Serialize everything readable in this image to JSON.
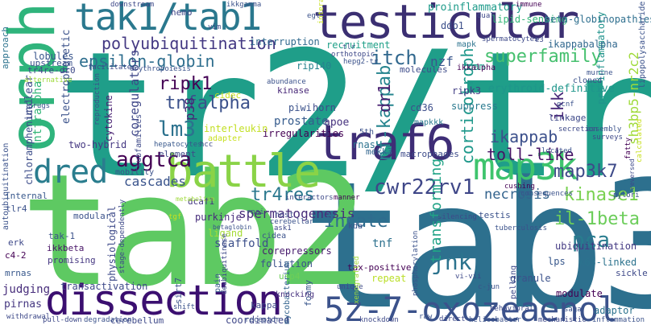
{
  "words": [
    {
      "t": "tr2/tr4",
      "c": "#1f9e89"
    },
    {
      "t": "tab3",
      "c": "#2d708e"
    },
    {
      "t": "tab2",
      "c": "#5ec962"
    },
    {
      "t": "testicular",
      "c": "#3b2f72"
    },
    {
      "t": "tak1/tab1",
      "c": "#2a788e"
    },
    {
      "t": "orphan",
      "c": "#2fb47c"
    },
    {
      "t": "battle",
      "c": "#8ad347"
    },
    {
      "t": "dissection",
      "c": "#3b0f70"
    },
    {
      "t": "traf6",
      "c": "#3e2d76"
    },
    {
      "t": "5z-7-oxozeaenol",
      "c": "#3b528b"
    },
    {
      "t": "map3k",
      "c": "#3ec46d"
    },
    {
      "t": "dred",
      "c": "#2a7d8e"
    },
    {
      "t": "polyubiquitination",
      "c": "#443983"
    },
    {
      "t": "epsilon-globin",
      "c": "#2e6e8e"
    },
    {
      "t": "itch",
      "c": "#31688e"
    },
    {
      "t": "superfamily",
      "c": "#46c06f"
    },
    {
      "t": "ripk1",
      "c": "#440154"
    },
    {
      "t": "tnfalpha",
      "c": "#3b518b"
    },
    {
      "t": "lm3",
      "c": "#2c728e"
    },
    {
      "t": "aggtca",
      "c": "#440154"
    },
    {
      "t": "cascades",
      "c": "#3a548c"
    },
    {
      "t": "tr4res",
      "c": "#2a788e"
    },
    {
      "t": "cwr22rv1",
      "c": "#3f4788"
    },
    {
      "t": "spermatogenesis",
      "c": "#472c7a"
    },
    {
      "t": "innate",
      "c": "#2f6c8e"
    },
    {
      "t": "jnk",
      "c": "#2c738e"
    },
    {
      "t": "map3k7",
      "c": "#3e4a89"
    },
    {
      "t": "kinase1",
      "c": "#7ad151"
    },
    {
      "t": "il-1beta",
      "c": "#6ccd5a"
    },
    {
      "t": "pca",
      "c": "#287c8e"
    },
    {
      "t": "toll-like",
      "c": "#471365"
    },
    {
      "t": "ikappab",
      "c": "#3c508b"
    },
    {
      "t": "necrosis",
      "c": "#33638d"
    },
    {
      "t": "sh3bp5-nr2c2",
      "c": "#9fda3a"
    },
    {
      "t": "nf-kappab",
      "c": "#25848e"
    },
    {
      "t": "corticotroph",
      "c": "#1f988b"
    },
    {
      "t": "transforming",
      "c": "#20a386"
    },
    {
      "t": "dr1",
      "c": "#481f70"
    },
    {
      "t": "p38",
      "c": "#482475"
    },
    {
      "t": "cntfralpha",
      "c": "#34b679"
    },
    {
      "t": "erythroid-definitive",
      "c": "#1f968b"
    },
    {
      "t": "proinflammatory",
      "c": "#1e9b8a"
    },
    {
      "t": "lipid-sensing",
      "c": "#35b779"
    },
    {
      "t": "beta-globinopathies",
      "c": "#2e6f8e"
    },
    {
      "t": "nzf",
      "c": "#39568c"
    },
    {
      "t": "ikk",
      "c": "#482677"
    },
    {
      "t": "pro-inflammatory",
      "c": "#20938c"
    },
    {
      "t": "coregulators",
      "c": "#3f4788"
    },
    {
      "t": "dcaf1",
      "c": "#453882"
    },
    {
      "t": "tnf",
      "c": "#2d718e"
    },
    {
      "t": "ubiquitination",
      "c": "#443a83"
    },
    {
      "t": "k63-linked",
      "c": "#2c738e"
    },
    {
      "t": "ripk3",
      "c": "#433e85"
    },
    {
      "t": "cd36",
      "c": "#3d4e8a"
    },
    {
      "t": "macrophages",
      "c": "#3e4c8a"
    },
    {
      "t": "mekk3",
      "c": "#32658e"
    },
    {
      "t": "apoe",
      "c": "#46327e"
    },
    {
      "t": "rnas",
      "c": "#2c728e"
    },
    {
      "t": "interleukin",
      "c": "#c2df23"
    },
    {
      "t": "cidec",
      "c": "#c8e020"
    },
    {
      "t": "prostate",
      "c": "#365c8d"
    },
    {
      "t": "electrophoretic",
      "c": "#3b528b"
    },
    {
      "t": "autoubiquitination",
      "c": "#3b528b"
    },
    {
      "t": "chloramphenicol",
      "c": "#3d4d8a"
    },
    {
      "t": "physiological",
      "c": "#3e4a89"
    },
    {
      "t": "corepressors",
      "c": "#481c6e"
    },
    {
      "t": "scaffold",
      "c": "#3c4f8a"
    },
    {
      "t": "foliation",
      "c": "#3b528b"
    },
    {
      "t": "usp4",
      "c": "#6ece58"
    },
    {
      "t": "transactivation",
      "c": "#3e4989"
    },
    {
      "t": "judging",
      "c": "#472d7b"
    },
    {
      "t": "ikkbeta",
      "c": "#481467"
    },
    {
      "t": "pirnas",
      "c": "#453781"
    },
    {
      "t": "coordinated",
      "c": "#3f4788"
    },
    {
      "t": "mycobacterium",
      "c": "#32648e"
    },
    {
      "t": "foamy",
      "c": "#39568c"
    },
    {
      "t": "modulate",
      "c": "#440154"
    },
    {
      "t": "adaptor",
      "c": "#2c738e"
    },
    {
      "t": "granule",
      "c": "#3b528b"
    },
    {
      "t": "lps",
      "c": "#38588c"
    },
    {
      "t": "pelling",
      "c": "#3e4989"
    },
    {
      "t": "repeat",
      "c": "#bade28"
    },
    {
      "t": "tax-positive",
      "c": "#440154"
    },
    {
      "t": "knocking",
      "c": "#46307e"
    },
    {
      "t": "kappa",
      "c": "#3e4989"
    },
    {
      "t": "sirt7",
      "c": "#3b528b"
    },
    {
      "t": "pain",
      "c": "#38588c"
    },
    {
      "t": "purkinje",
      "c": "#472d7b"
    },
    {
      "t": "ligand",
      "c": "#a5db36"
    },
    {
      "t": "cytokine",
      "c": "#482173"
    },
    {
      "t": "recruitment",
      "c": "#1fa088"
    },
    {
      "t": "interruption",
      "c": "#30698e"
    },
    {
      "t": "rip140",
      "c": "#25838e"
    },
    {
      "t": "foam",
      "c": "#1e9c89"
    },
    {
      "t": "suppress",
      "c": "#29798e"
    },
    {
      "t": "nemo",
      "c": "#3f4788"
    },
    {
      "t": "ddb1",
      "c": "#3c4f8a"
    },
    {
      "t": "lobules",
      "c": "#39558c"
    },
    {
      "t": "upstream",
      "c": "#3b528b"
    },
    {
      "t": "tr4re-dr0",
      "c": "#3e4a89"
    },
    {
      "t": "unclear",
      "c": "#3e4c8a"
    },
    {
      "t": "two-hybrid",
      "c": "#453882"
    },
    {
      "t": "internal",
      "c": "#38588c"
    },
    {
      "t": "tlr4",
      "c": "#3b528b"
    },
    {
      "t": "erk",
      "c": "#3e4989"
    },
    {
      "t": "c4-2",
      "c": "#440154"
    },
    {
      "t": "tak-1",
      "c": "#3b528b"
    },
    {
      "t": "promising",
      "c": "#453781"
    },
    {
      "t": "mrnas",
      "c": "#38588c"
    },
    {
      "t": "approach",
      "c": "#2c738e"
    },
    {
      "t": "reproduction",
      "c": "#3b528b"
    },
    {
      "t": "subfamilies",
      "c": "#3e4a89"
    },
    {
      "t": "adapter",
      "c": "#c8e020"
    },
    {
      "t": "hepatocytes",
      "c": "#38588c"
    },
    {
      "t": "element",
      "c": "#3e4a89"
    },
    {
      "t": "mobility",
      "c": "#3b528b"
    },
    {
      "t": "piwi",
      "c": "#3b528b"
    },
    {
      "t": "horn",
      "c": "#3e4989"
    },
    {
      "t": "irregularities",
      "c": "#440154"
    },
    {
      "t": "5th",
      "c": "#3b528b"
    },
    {
      "t": "mapkkk",
      "c": "#29798e"
    },
    {
      "t": "molecules",
      "c": "#3e4c8a"
    },
    {
      "t": "kinase",
      "c": "#482878"
    },
    {
      "t": "abundance",
      "c": "#3b528b"
    },
    {
      "t": "ikkalpha",
      "c": "#440154"
    },
    {
      "t": "ikappabalpha",
      "c": "#31688e"
    },
    {
      "t": "mapk",
      "c": "#2c738e"
    },
    {
      "t": "spermatocytes",
      "c": "#3e4a89"
    },
    {
      "t": "lipopolysaccharide",
      "c": "#3b528b"
    },
    {
      "t": "linkage",
      "c": "#3e4989"
    },
    {
      "t": "cloned",
      "c": "#3b528b"
    },
    {
      "t": "erythropoiesis",
      "c": "#3b528b"
    },
    {
      "t": "facilitates",
      "c": "#3e4989"
    },
    {
      "t": "drugs",
      "c": "#3b528b"
    },
    {
      "t": "alternative",
      "c": "#9fda3a"
    },
    {
      "t": "downstream",
      "c": "#3e4989"
    },
    {
      "t": "ikkgamma",
      "c": "#3b528b"
    },
    {
      "t": "immune",
      "c": "#440154"
    },
    {
      "t": "dual",
      "c": "#3e4989"
    },
    {
      "t": "hepg2-tr",
      "c": "#3b528b"
    },
    {
      "t": "orthotopic",
      "c": "#3e4989"
    },
    {
      "t": "murine",
      "c": "#3b528b"
    },
    {
      "t": "secretion",
      "c": "#3e4989"
    },
    {
      "t": "assembly",
      "c": "#3b528b"
    },
    {
      "t": "surveys",
      "c": "#3e4989"
    },
    {
      "t": "fatty",
      "c": "#440154"
    },
    {
      "t": "calculated",
      "c": "#c8e020"
    },
    {
      "t": "located",
      "c": "#3b528b"
    },
    {
      "t": "reversed",
      "c": "#3e4989"
    },
    {
      "t": "pylori",
      "c": "#3b528b"
    },
    {
      "t": "sickle",
      "c": "#3e4989"
    },
    {
      "t": "consequences",
      "c": "#3b528b"
    },
    {
      "t": "cushing",
      "c": "#440154"
    },
    {
      "t": "tuberculosis",
      "c": "#3b528b"
    },
    {
      "t": "silencing",
      "c": "#3e4989"
    },
    {
      "t": "testis",
      "c": "#3b528b"
    },
    {
      "t": "vi-vii",
      "c": "#3e4989"
    },
    {
      "t": "c-jun",
      "c": "#3b528b"
    },
    {
      "t": "behavioral",
      "c": "#3e4989"
    },
    {
      "t": "saga",
      "c": "#3b528b"
    },
    {
      "t": "withdrawal",
      "c": "#3e4989"
    },
    {
      "t": "helicobacter",
      "c": "#3b528b"
    },
    {
      "t": "mechanistic",
      "c": "#3e4989"
    },
    {
      "t": "inflammation",
      "c": "#3b528b"
    },
    {
      "t": "direct",
      "c": "#3e4989"
    },
    {
      "t": "raw",
      "c": "#3b528b"
    },
    {
      "t": "knockdown",
      "c": "#3e4989"
    },
    {
      "t": "receptor-4",
      "c": "#3b528b"
    },
    {
      "t": "cerebellum",
      "c": "#3e4989"
    },
    {
      "t": "degradation",
      "c": "#3b528b"
    },
    {
      "t": "pull-down",
      "c": "#3e4989"
    },
    {
      "t": "shift",
      "c": "#3b528b"
    },
    {
      "t": "host",
      "c": "#3e4989"
    },
    {
      "t": "manner",
      "c": "#440154"
    },
    {
      "t": "rnai",
      "c": "#3b528b"
    },
    {
      "t": "interactors",
      "c": "#3e4989"
    },
    {
      "t": "cidea",
      "c": "#3b528b"
    },
    {
      "t": "ask1",
      "c": "#3e4989"
    },
    {
      "t": "cerebellar",
      "c": "#3b528b"
    },
    {
      "t": "unique",
      "c": "#3e4989"
    },
    {
      "t": "kda",
      "c": "#3b528b"
    },
    {
      "t": "tgf",
      "c": "#c8e020"
    },
    {
      "t": "modular",
      "c": "#3b528b"
    },
    {
      "t": "stage-dependently",
      "c": "#3e4989"
    },
    {
      "t": "metabolism",
      "c": "#9fda3a"
    },
    {
      "t": "betaglobin",
      "c": "#3b528b"
    },
    {
      "t": "hcc",
      "c": "#3e4989"
    },
    {
      "t": "xenografted",
      "c": "#9fda3a"
    },
    {
      "t": "phosphorylation",
      "c": "#3b528b"
    },
    {
      "t": "deubiquitinase",
      "c": "#3e4989"
    },
    {
      "t": "gcnf",
      "c": "#3b528b"
    },
    {
      "t": "vim",
      "c": "#3e4989"
    },
    {
      "t": "egl",
      "c": "#3b528b"
    },
    {
      "t": "interacted",
      "c": "#c8e020"
    },
    {
      "t": "tlr",
      "c": "#3b528b"
    },
    {
      "t": "e3",
      "c": "#3e4989"
    }
  ]
}
